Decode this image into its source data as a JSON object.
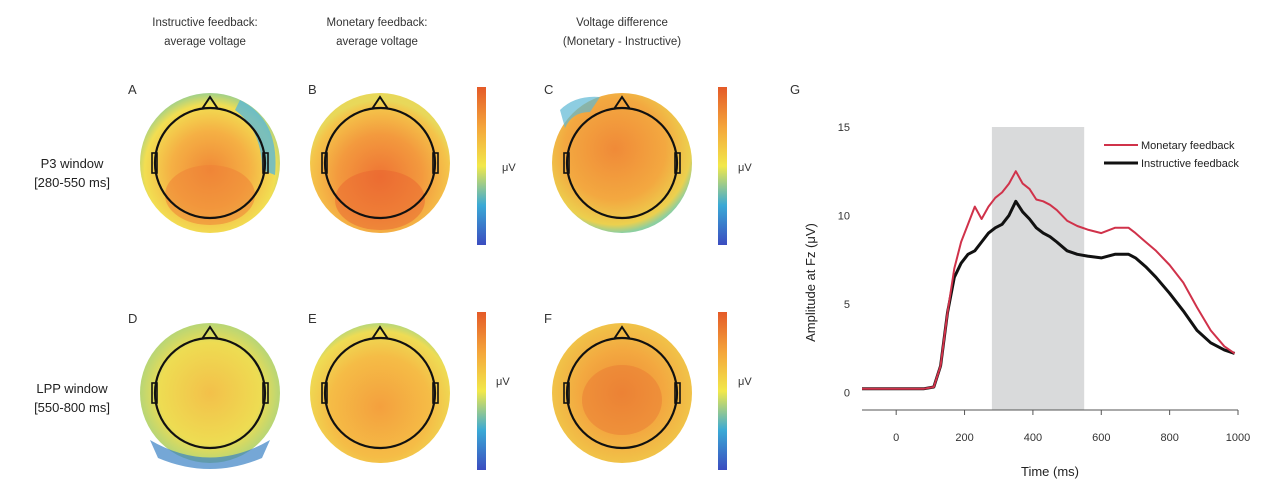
{
  "column_headers": [
    [
      "Instructive feedback:",
      "average voltage"
    ],
    [
      "Monetary feedback:",
      "average voltage"
    ],
    [
      "Voltage difference",
      "(Monetary - Instructive)"
    ]
  ],
  "row_labels": [
    [
      "P3 window",
      "[280-550 ms]"
    ],
    [
      "LPP window",
      "[550-800 ms]"
    ]
  ],
  "panel_letters": [
    "A",
    "B",
    "C",
    "D",
    "E",
    "F",
    "G"
  ],
  "colorbar_unit": "μV",
  "colors": {
    "monetary": "#d0324a",
    "instructive": "#111111",
    "shade": "#d9dadb"
  },
  "chart_data": {
    "type": "line",
    "panel": "G",
    "xlabel": "Time (ms)",
    "ylabel": "Amplitude at Fz (μV)",
    "xlim": [
      -100,
      1000
    ],
    "ylim": [
      -1,
      15
    ],
    "xticks": [
      0,
      200,
      400,
      600,
      800,
      1000
    ],
    "yticks": [
      0,
      5,
      10,
      15
    ],
    "shaded_window": [
      280,
      550
    ],
    "legend_position": "top-right",
    "series": [
      {
        "name": "Monetary feedback",
        "x": [
          -100,
          -60,
          -20,
          0,
          40,
          80,
          110,
          130,
          150,
          170,
          190,
          210,
          230,
          250,
          270,
          290,
          310,
          330,
          350,
          370,
          390,
          410,
          430,
          450,
          470,
          500,
          530,
          560,
          600,
          640,
          680,
          700,
          730,
          760,
          800,
          840,
          880,
          920,
          960,
          990
        ],
        "y": [
          0.2,
          0.2,
          0.2,
          0.2,
          0.2,
          0.2,
          0.3,
          1.5,
          4.5,
          7.0,
          8.5,
          9.5,
          10.5,
          9.8,
          10.5,
          11.0,
          11.3,
          11.8,
          12.5,
          11.8,
          11.5,
          10.9,
          10.8,
          10.6,
          10.3,
          9.7,
          9.4,
          9.2,
          9.0,
          9.3,
          9.3,
          9.0,
          8.5,
          8.0,
          7.2,
          6.2,
          4.8,
          3.5,
          2.6,
          2.2
        ]
      },
      {
        "name": "Instructive feedback",
        "x": [
          -100,
          -60,
          -20,
          0,
          40,
          80,
          110,
          130,
          150,
          170,
          190,
          210,
          230,
          250,
          270,
          290,
          310,
          330,
          350,
          370,
          390,
          410,
          430,
          450,
          470,
          500,
          530,
          560,
          600,
          640,
          680,
          700,
          730,
          760,
          800,
          840,
          880,
          920,
          960,
          990
        ],
        "y": [
          0.2,
          0.2,
          0.2,
          0.2,
          0.2,
          0.2,
          0.3,
          1.5,
          4.5,
          6.5,
          7.3,
          7.8,
          8.0,
          8.5,
          9.0,
          9.3,
          9.5,
          10.0,
          10.8,
          10.2,
          9.8,
          9.3,
          9.0,
          8.8,
          8.5,
          8.0,
          7.8,
          7.7,
          7.6,
          7.8,
          7.8,
          7.6,
          7.1,
          6.5,
          5.6,
          4.6,
          3.5,
          2.8,
          2.4,
          2.2
        ]
      }
    ]
  }
}
